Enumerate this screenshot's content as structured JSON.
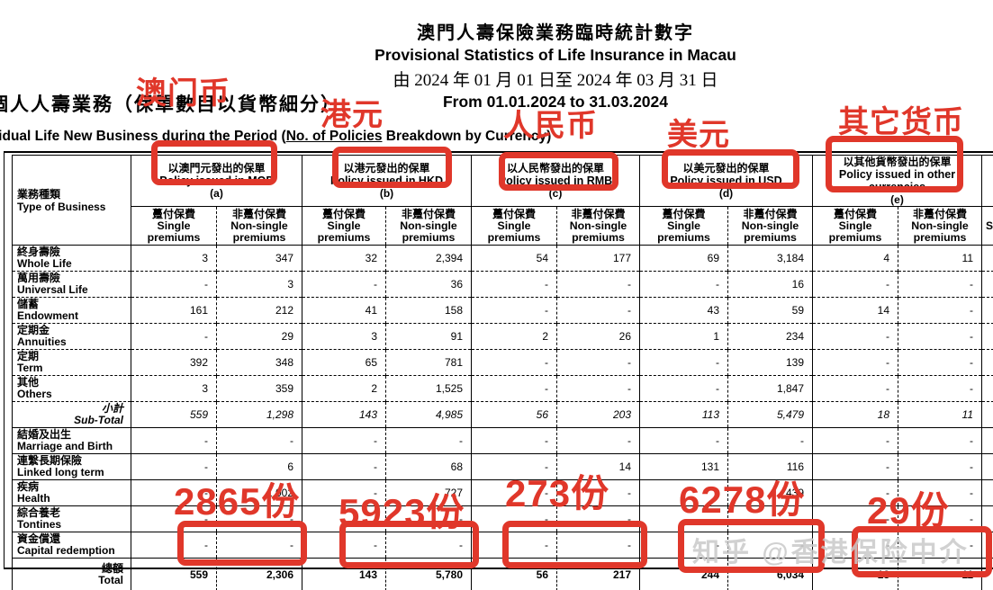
{
  "title": {
    "zh": "澳門人壽保險業務臨時統計數字",
    "en": "Provisional Statistics of Life Insurance in Macau",
    "period_zh": "由 2024 年 01 月 01 日至 2024 年 03 月 31 日",
    "period_en": "From 01.01.2024 to 31.03.2024"
  },
  "subtitle": {
    "zh": "個人人壽業務（保單數目以貨幣細分）",
    "en_pre": "Individual Life New Business during the Period (",
    "en_underline": "No. of Policies",
    "en_post": " Breakdown by Currency)"
  },
  "annotations": {
    "red": "#e0372a",
    "labels": [
      "澳门币",
      "港元",
      "人民币",
      "美元",
      "其它货币"
    ],
    "counts": [
      "2865份",
      "5923份",
      "273份",
      "6278份",
      "29份"
    ]
  },
  "watermark": {
    "text": "知乎 @香港保险中介",
    "color": "#c9c9c9"
  },
  "table": {
    "type_header": {
      "zh": "業務種類",
      "en": "Type of Business"
    },
    "currencies": [
      {
        "zh": "以澳門元發出的保單",
        "en": "Policy issued in MOP",
        "key": "(a)"
      },
      {
        "zh": "以港元發出的保單",
        "en": "Policy issued in HKD",
        "key": "(b)"
      },
      {
        "zh": "以人民幣發出的保單",
        "en": "Policy issued in RMB",
        "key": "(c)"
      },
      {
        "zh": "以美元發出的保單",
        "en": "Policy issued in USD",
        "key": "(d)"
      },
      {
        "zh": "以其他貨幣發出的保單",
        "en": "Policy issued in other currencies",
        "key": "(e)"
      }
    ],
    "premium_cols": {
      "single_zh": "躉付保費",
      "single_en": "Single premiums",
      "nonsingle_zh": "非躉付保費",
      "nonsingle_en": "Non-single premiums"
    },
    "partial_next_col": "S",
    "rows": [
      {
        "zh": "終身壽險",
        "en": "Whole Life",
        "values": [
          "3",
          "347",
          "32",
          "2,394",
          "54",
          "177",
          "69",
          "3,184",
          "4",
          "11"
        ]
      },
      {
        "zh": "萬用壽險",
        "en": "Universal Life",
        "values": [
          "-",
          "3",
          "-",
          "36",
          "-",
          "-",
          "-",
          "16",
          "-",
          "-"
        ]
      },
      {
        "zh": "儲蓄",
        "en": "Endowment",
        "values": [
          "161",
          "212",
          "41",
          "158",
          "-",
          "-",
          "43",
          "59",
          "14",
          "-"
        ]
      },
      {
        "zh": "定期金",
        "en": "Annuities",
        "values": [
          "-",
          "29",
          "3",
          "91",
          "2",
          "26",
          "1",
          "234",
          "-",
          "-"
        ]
      },
      {
        "zh": "定期",
        "en": "Term",
        "values": [
          "392",
          "348",
          "65",
          "781",
          "-",
          "-",
          "-",
          "139",
          "-",
          "-"
        ]
      },
      {
        "zh": "其他",
        "en": "Others",
        "values": [
          "3",
          "359",
          "2",
          "1,525",
          "-",
          "-",
          "-",
          "1,847",
          "-",
          "-"
        ]
      },
      {
        "zh": "小計",
        "en": "Sub-Total",
        "style": "subtotal",
        "values": [
          "559",
          "1,298",
          "143",
          "4,985",
          "56",
          "203",
          "113",
          "5,479",
          "18",
          "11"
        ]
      },
      {
        "zh": "結婚及出生",
        "en": "Marriage and Birth",
        "values": [
          "-",
          "-",
          "-",
          "-",
          "-",
          "-",
          "-",
          "-",
          "-",
          "-"
        ]
      },
      {
        "zh": "連繫長期保險",
        "en": "Linked long term",
        "values": [
          "-",
          "6",
          "-",
          "68",
          "-",
          "14",
          "131",
          "116",
          "-",
          "-"
        ]
      },
      {
        "zh": "疾病",
        "en": "Health",
        "values": [
          "-",
          "1,002",
          "-",
          "727",
          "-",
          "-",
          "-",
          "439",
          "-",
          "-"
        ]
      },
      {
        "zh": "綜合養老",
        "en": "Tontines",
        "values": [
          "-",
          "-",
          "-",
          "-",
          "-",
          "-",
          "-",
          "-",
          "-",
          "-"
        ]
      },
      {
        "zh": "資金償還",
        "en": "Capital redemption",
        "values": [
          "-",
          "-",
          "-",
          "-",
          "-",
          "-",
          "-",
          "-",
          "-",
          "-"
        ]
      },
      {
        "zh": "總額",
        "en": "Total",
        "style": "total",
        "values": [
          "559",
          "2,306",
          "143",
          "5,780",
          "56",
          "217",
          "244",
          "6,034",
          "18",
          "11"
        ]
      }
    ]
  }
}
